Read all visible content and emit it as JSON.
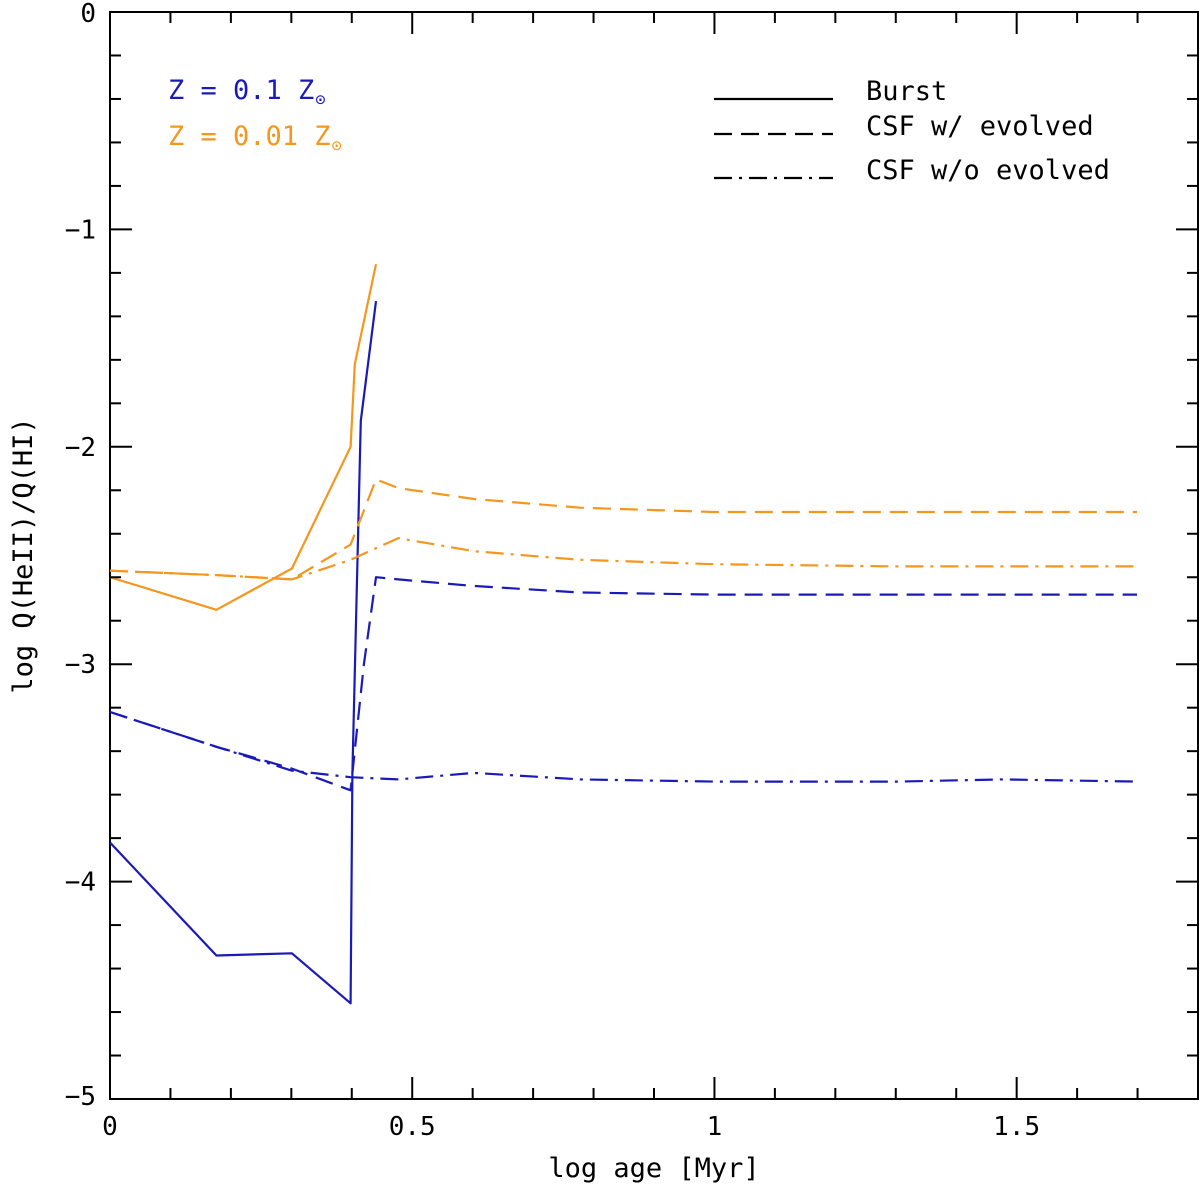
{
  "chart_data": {
    "type": "line",
    "title": "",
    "xlabel": "log age [Myr]",
    "ylabel": "log Q(HeII)/Q(HI)",
    "xlim": [
      0,
      1.8
    ],
    "ylim": [
      -5,
      0
    ],
    "xticks": [
      0,
      0.5,
      1,
      1.5
    ],
    "xtick_labels": [
      "0",
      "0.5",
      "1",
      "1.5"
    ],
    "xminor_step": 0.1,
    "yticks": [
      -5,
      -4,
      -3,
      -2,
      -1,
      0
    ],
    "ytick_labels": [
      "−5",
      "−4",
      "−3",
      "−2",
      "−1",
      "0"
    ],
    "yminor_step": 0.2,
    "metallicities": [
      {
        "label": "Z = 0.1 Z",
        "symbol": "⊙",
        "color": "#1a1ab8"
      },
      {
        "label": "Z = 0.01 Z",
        "symbol": "⊙",
        "color": "#f5961e"
      }
    ],
    "legend": [
      {
        "label": "Burst",
        "style": "solid"
      },
      {
        "label": "CSF w/ evolved",
        "style": "dashed"
      },
      {
        "label": "CSF w/o evolved",
        "style": "dashdot"
      }
    ],
    "series": [
      {
        "name": "Burst, Z = 0.1 Zsun",
        "style": "solid",
        "color": "#1a1ab8",
        "x": [
          0.0,
          0.176,
          0.301,
          0.398,
          0.401,
          0.415,
          0.44
        ],
        "y": [
          -3.82,
          -4.34,
          -4.33,
          -4.56,
          -3.5,
          -1.88,
          -1.33
        ]
      },
      {
        "name": "CSF w/ evolved, Z = 0.1 Zsun",
        "style": "dashed",
        "color": "#1a1ab8",
        "x": [
          0.0,
          0.176,
          0.301,
          0.398,
          0.42,
          0.44,
          0.477,
          0.6,
          0.778,
          1.0,
          1.3,
          1.699
        ],
        "y": [
          -3.22,
          -3.38,
          -3.48,
          -3.58,
          -3.0,
          -2.6,
          -2.61,
          -2.64,
          -2.67,
          -2.68,
          -2.68,
          -2.68
        ]
      },
      {
        "name": "CSF w/o evolved, Z = 0.1 Zsun",
        "style": "dashdot",
        "color": "#1a1ab8",
        "x": [
          0.0,
          0.176,
          0.301,
          0.398,
          0.477,
          0.602,
          0.778,
          1.0,
          1.301,
          1.477,
          1.699
        ],
        "y": [
          -3.22,
          -3.38,
          -3.49,
          -3.52,
          -3.53,
          -3.5,
          -3.53,
          -3.54,
          -3.54,
          -3.53,
          -3.54
        ]
      },
      {
        "name": "Burst, Z = 0.01 Zsun",
        "style": "solid",
        "color": "#f5961e",
        "x": [
          0.0,
          0.176,
          0.301,
          0.398,
          0.405,
          0.44
        ],
        "y": [
          -2.6,
          -2.75,
          -2.56,
          -2.0,
          -1.62,
          -1.16
        ]
      },
      {
        "name": "CSF w/ evolved, Z = 0.01 Zsun",
        "style": "dashed",
        "color": "#f5961e",
        "x": [
          0.0,
          0.176,
          0.301,
          0.398,
          0.44,
          0.477,
          0.602,
          0.778,
          1.0,
          1.301,
          1.699
        ],
        "y": [
          -2.57,
          -2.59,
          -2.61,
          -2.45,
          -2.15,
          -2.19,
          -2.24,
          -2.28,
          -2.3,
          -2.3,
          -2.3
        ]
      },
      {
        "name": "CSF w/o evolved, Z = 0.01 Zsun",
        "style": "dashdot",
        "color": "#f5961e",
        "x": [
          0.0,
          0.176,
          0.301,
          0.398,
          0.477,
          0.602,
          0.778,
          1.0,
          1.301,
          1.699
        ],
        "y": [
          -2.57,
          -2.59,
          -2.61,
          -2.52,
          -2.42,
          -2.48,
          -2.52,
          -2.54,
          -2.55,
          -2.55
        ]
      }
    ]
  }
}
